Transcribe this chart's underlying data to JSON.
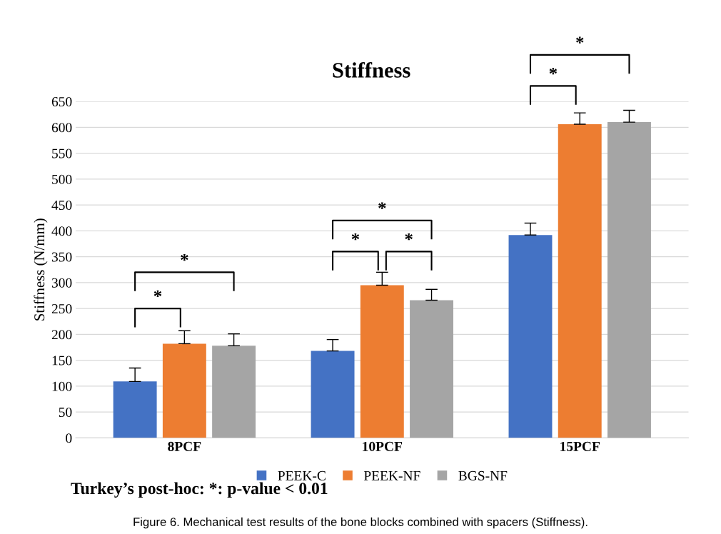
{
  "chart_data": {
    "type": "bar",
    "title": "Stiffness",
    "ylabel": "Stiffness (N/mm)",
    "categories": [
      "8PCF",
      "10PCF",
      "15PCF"
    ],
    "series": [
      {
        "name": "PEEK-C",
        "color": "#4472c4",
        "values": [
          109,
          168,
          392
        ],
        "errors": [
          26,
          22,
          23
        ]
      },
      {
        "name": "PEEK-NF",
        "color": "#ed7d31",
        "values": [
          182,
          295,
          606
        ],
        "errors": [
          25,
          25,
          22
        ]
      },
      {
        "name": "BGS-NF",
        "color": "#a5a5a5",
        "values": [
          178,
          266,
          610
        ],
        "errors": [
          23,
          21,
          23
        ]
      }
    ],
    "ylim": [
      0,
      650
    ],
    "yticks": [
      0,
      50,
      100,
      150,
      200,
      250,
      300,
      350,
      400,
      450,
      500,
      550,
      600,
      650
    ],
    "grid": "y",
    "legend": "bottom",
    "annotations": [
      "*",
      "*",
      "*",
      "*",
      "*",
      "*",
      "*",
      "Turkey’s post-hoc: *: p-value < 0.01",
      "Figure 6. Mechanical test results of the bone blocks combined with spacers (Stiffness)."
    ]
  }
}
